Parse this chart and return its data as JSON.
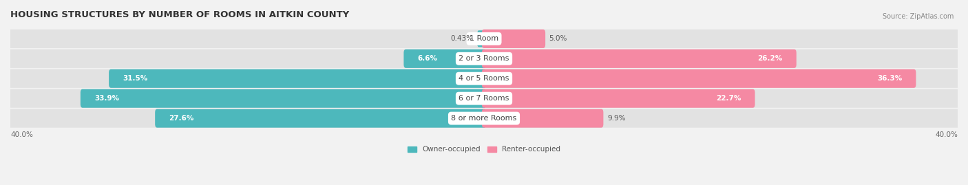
{
  "title": "HOUSING STRUCTURES BY NUMBER OF ROOMS IN AITKIN COUNTY",
  "source": "Source: ZipAtlas.com",
  "categories": [
    "1 Room",
    "2 or 3 Rooms",
    "4 or 5 Rooms",
    "6 or 7 Rooms",
    "8 or more Rooms"
  ],
  "owner_values": [
    0.43,
    6.6,
    31.5,
    33.9,
    27.6
  ],
  "renter_values": [
    5.0,
    26.2,
    36.3,
    22.7,
    9.9
  ],
  "owner_color": "#4db8bc",
  "renter_color": "#f589a3",
  "owner_label": "Owner-occupied",
  "renter_label": "Renter-occupied",
  "axis_max": 40.0,
  "axis_min": -40.0,
  "background_color": "#f2f2f2",
  "bar_bg_color": "#e2e2e2",
  "bar_height": 0.58,
  "title_fontsize": 9.5,
  "label_fontsize": 7.5,
  "cat_fontsize": 8.0,
  "axis_label_fontsize": 7.5
}
